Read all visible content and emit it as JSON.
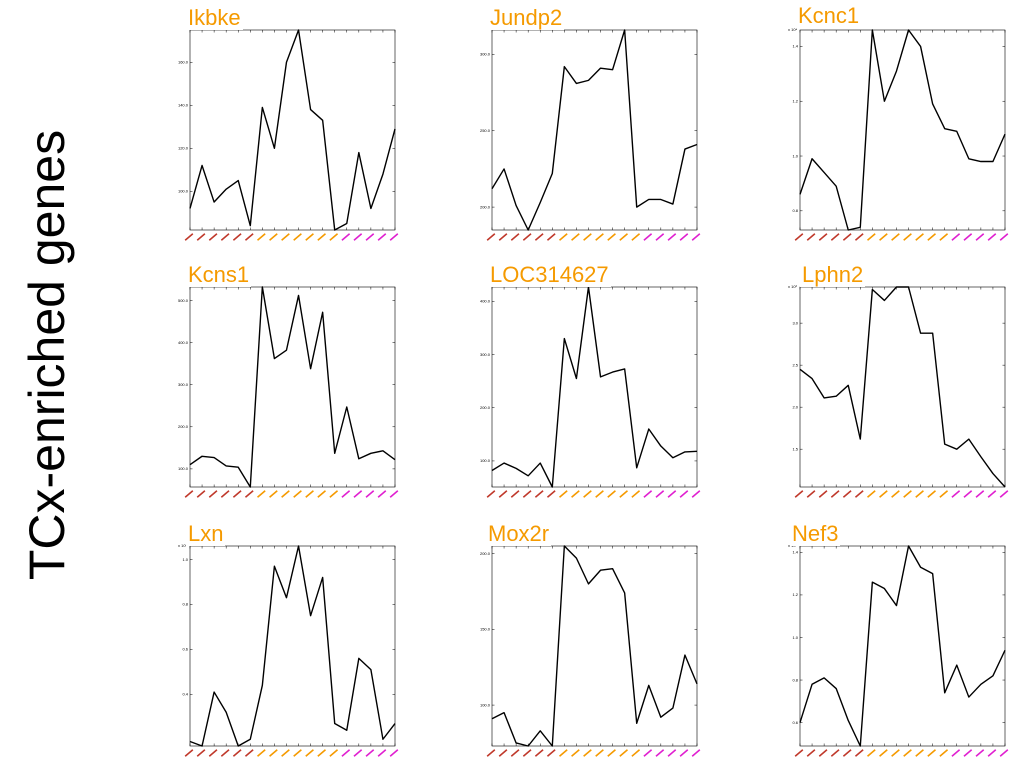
{
  "side_title": "TCx-enriched genes",
  "colors": {
    "line": "#000000",
    "gene_label": "#f59a00",
    "category_groups": [
      "#c0392b",
      "#f59a00",
      "#e020d0"
    ]
  },
  "chart_data": [
    {
      "type": "line",
      "title": "Ikbke",
      "y_multiplier": "",
      "yticks": [
        "100.0",
        "120.0",
        "140.0",
        "160.0"
      ],
      "ylim": [
        82,
        175
      ],
      "y": [
        92,
        112,
        95,
        101,
        105,
        84,
        139,
        120,
        160,
        175,
        138,
        133,
        82,
        85,
        118,
        92,
        108,
        129
      ],
      "category_group_sizes": [
        6,
        7,
        5
      ],
      "grid": false
    },
    {
      "type": "line",
      "title": "Jundp2",
      "y_multiplier": "",
      "yticks": [
        "200.0",
        "250.0",
        "300.0"
      ],
      "ylim": [
        185,
        316
      ],
      "y": [
        212,
        225,
        201,
        185,
        203,
        222,
        292,
        281,
        283,
        291,
        290,
        316,
        200,
        205,
        205,
        202,
        238,
        241
      ],
      "category_group_sizes": [
        6,
        7,
        5
      ],
      "grid": false
    },
    {
      "type": "line",
      "title": "Kcnc1",
      "y_multiplier": "x 10⁴",
      "yticks": [
        "0.8",
        "1.0",
        "1.2",
        "1.4"
      ],
      "ylim": [
        0.73,
        1.46
      ],
      "y": [
        0.86,
        0.99,
        0.94,
        0.89,
        0.73,
        0.74,
        1.46,
        1.2,
        1.31,
        1.46,
        1.4,
        1.19,
        1.1,
        1.09,
        0.99,
        0.98,
        0.98,
        1.08
      ],
      "category_group_sizes": [
        6,
        7,
        5
      ],
      "grid": false
    },
    {
      "type": "line",
      "title": "Kcns1",
      "y_multiplier": "",
      "yticks": [
        "100.0",
        "200.0",
        "300.0",
        "400.0",
        "500.0"
      ],
      "ylim": [
        57,
        532
      ],
      "y": [
        110,
        130,
        127,
        107,
        104,
        57,
        532,
        362,
        382,
        512,
        338,
        472,
        137,
        247,
        124,
        137,
        143,
        122
      ],
      "category_group_sizes": [
        6,
        7,
        5
      ],
      "grid": false
    },
    {
      "type": "line",
      "title": "LOC314627",
      "y_multiplier": "",
      "yticks": [
        "100.0",
        "200.0",
        "300.0",
        "400.0"
      ],
      "ylim": [
        51,
        427
      ],
      "y": [
        82,
        96,
        86,
        72,
        96,
        51,
        330,
        255,
        427,
        258,
        267,
        273,
        87,
        160,
        128,
        106,
        117,
        118
      ],
      "category_group_sizes": [
        6,
        7,
        5
      ],
      "grid": false
    },
    {
      "type": "line",
      "title": "Lphn2",
      "y_multiplier": "x 10³",
      "yticks": [
        "1.5",
        "2.0",
        "2.5",
        "3.0"
      ],
      "ylim": [
        1.05,
        3.43
      ],
      "y": [
        2.45,
        2.34,
        2.11,
        2.13,
        2.26,
        1.62,
        3.4,
        3.27,
        3.43,
        3.43,
        2.88,
        2.88,
        1.56,
        1.5,
        1.62,
        1.41,
        1.21,
        1.05
      ],
      "category_group_sizes": [
        6,
        7,
        5
      ],
      "grid": false
    },
    {
      "type": "line",
      "title": "Lxn",
      "y_multiplier": "x 10³",
      "yticks": [
        "0.4",
        "0.6",
        "0.8",
        "1.0"
      ],
      "ylim": [
        0.17,
        1.06
      ],
      "y": [
        0.19,
        0.17,
        0.41,
        0.32,
        0.17,
        0.2,
        0.44,
        0.97,
        0.83,
        1.06,
        0.75,
        0.92,
        0.27,
        0.24,
        0.56,
        0.51,
        0.2,
        0.27
      ],
      "category_group_sizes": [
        6,
        7,
        5
      ],
      "grid": false
    },
    {
      "type": "line",
      "title": "Mox2r",
      "y_multiplier": "",
      "yticks": [
        "100.0",
        "150.0",
        "200.0"
      ],
      "ylim": [
        73,
        205
      ],
      "y": [
        91,
        95,
        75,
        73,
        83,
        73,
        205,
        197,
        180,
        189,
        190,
        174,
        88,
        113,
        92,
        98,
        133,
        114
      ],
      "category_group_sizes": [
        6,
        7,
        5
      ],
      "grid": false
    },
    {
      "type": "line",
      "title": "Nef3",
      "y_multiplier": "x 10⁴",
      "yticks": [
        "0.6",
        "0.8",
        "1.0",
        "1.2",
        "1.4"
      ],
      "ylim": [
        0.49,
        1.43
      ],
      "y": [
        0.6,
        0.78,
        0.81,
        0.76,
        0.61,
        0.49,
        1.26,
        1.23,
        1.15,
        1.43,
        1.33,
        1.3,
        0.74,
        0.87,
        0.72,
        0.78,
        0.82,
        0.94
      ],
      "category_group_sizes": [
        6,
        7,
        5
      ],
      "grid": false
    }
  ]
}
